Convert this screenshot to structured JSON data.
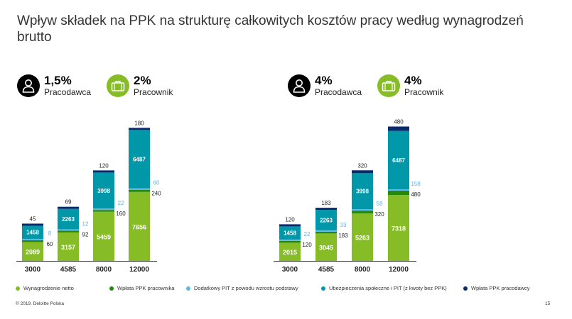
{
  "title": "Wpływ składek na PPK na strukturę całkowitych kosztów pracy według wynagrodzeń brutto",
  "panels": [
    {
      "employer_pct": "1,5%",
      "employer_label": "Pracodawca",
      "employee_pct": "2%",
      "employee_label": "Pracownik"
    },
    {
      "employer_pct": "4%",
      "employer_label": "Pracodawca",
      "employee_pct": "4%",
      "employee_label": "Pracownik"
    }
  ],
  "icons": {
    "employer": "person-icon",
    "employee": "briefcase-icon"
  },
  "colors": {
    "netto": "#86bc25",
    "ppk_pracownika": "#26890d",
    "pit": "#62b5e5",
    "ubezpieczenia": "#0097a9",
    "ppk_pracodawcy": "#0a2a6e",
    "employer_badge": "#000000",
    "employee_badge": "#86bc25"
  },
  "chart_data": [
    {
      "type": "bar",
      "stacked": true,
      "categories": [
        "3000",
        "4585",
        "8000",
        "12000"
      ],
      "series": [
        {
          "name": "Wynagrodzenie netto",
          "key": "netto",
          "values": [
            2089,
            3157,
            5459,
            7656
          ]
        },
        {
          "name": "Wpłata PPK pracownika",
          "key": "ppk_pracownika",
          "values": [
            60,
            92,
            160,
            240
          ]
        },
        {
          "name": "Dodatkowy PIT z powodu wzrostu podstawy",
          "key": "pit",
          "values": [
            8,
            12,
            22,
            60
          ]
        },
        {
          "name": "Ubezpieczenia społeczne i PIT (z kwoty bez PPK)",
          "key": "ubezpieczenia",
          "values": [
            1458,
            2263,
            3998,
            6487
          ]
        },
        {
          "name": "Wpłata PPK pracodawcy",
          "key": "ppk_pracodawcy",
          "values": [
            45,
            69,
            120,
            180
          ]
        }
      ]
    },
    {
      "type": "bar",
      "stacked": true,
      "categories": [
        "3000",
        "4585",
        "8000",
        "12000"
      ],
      "series": [
        {
          "name": "Wynagrodzenie netto",
          "key": "netto",
          "values": [
            2015,
            3045,
            5263,
            7318
          ]
        },
        {
          "name": "Wpłata PPK pracownika",
          "key": "ppk_pracownika",
          "values": [
            120,
            183,
            320,
            480
          ]
        },
        {
          "name": "Dodatkowy PIT z powodu wzrostu podstawy",
          "key": "pit",
          "values": [
            22,
            33,
            58,
            158
          ]
        },
        {
          "name": "Ubezpieczenia społeczne i PIT (z kwoty bez PPK)",
          "key": "ubezpieczenia",
          "values": [
            1458,
            2263,
            3998,
            6487
          ]
        },
        {
          "name": "Wpłata PPK pracodawcy",
          "key": "ppk_pracodawcy",
          "values": [
            120,
            183,
            320,
            480
          ]
        }
      ]
    }
  ],
  "legend": [
    {
      "label": "Wynagrodzenie netto",
      "key": "netto"
    },
    {
      "label": "Wpłata PPK pracownika",
      "key": "ppk_pracownika"
    },
    {
      "label": "Dodatkowy PIT z powodu wzrostu podstawy",
      "key": "pit"
    },
    {
      "label": "Ubezpieczenia społeczne i PIT (z kwoty bez PPK)",
      "key": "ubezpieczenia"
    },
    {
      "label": "Wpłata PPK pracodawcy",
      "key": "ppk_pracodawcy"
    }
  ],
  "footer": "© 2019. Deloitte Polska",
  "page_number": "15"
}
